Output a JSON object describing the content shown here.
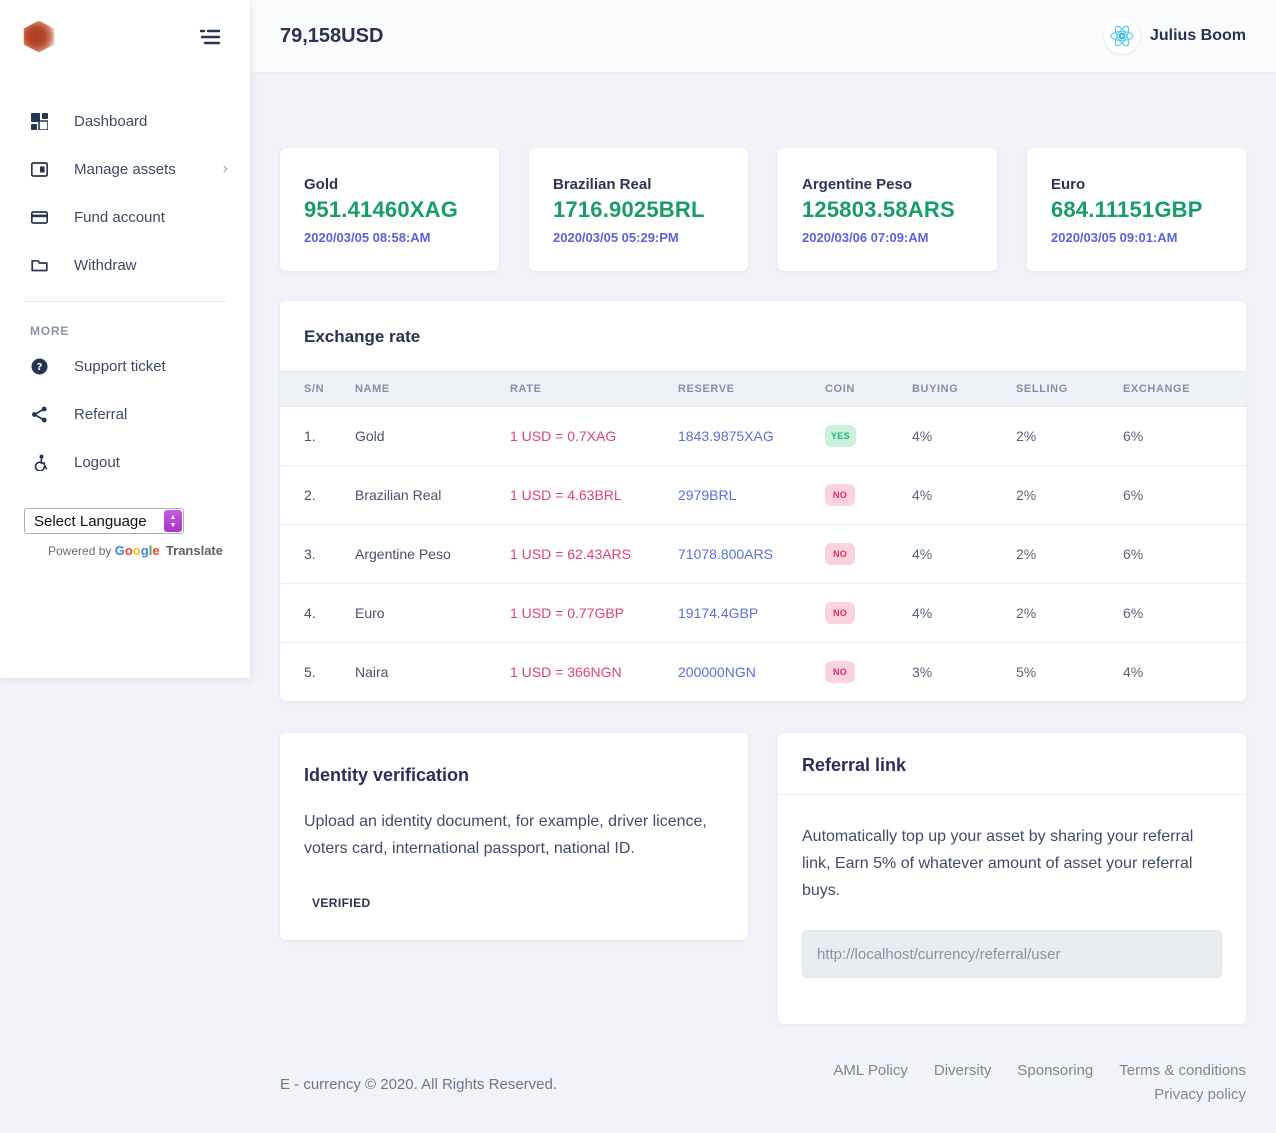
{
  "topbar": {
    "balance": "79,158USD",
    "user_name": "Julius Boom"
  },
  "sidebar": {
    "menu": [
      {
        "label": "Dashboard",
        "icon": "grid-icon"
      },
      {
        "label": "Manage assets",
        "icon": "vault-icon",
        "chevron": "›"
      },
      {
        "label": "Fund account",
        "icon": "credit-card-icon"
      },
      {
        "label": "Withdraw",
        "icon": "folder-icon"
      }
    ],
    "more_label": "MORE",
    "more_menu": [
      {
        "label": "Support ticket",
        "icon": "question-circle-icon"
      },
      {
        "label": "Referral",
        "icon": "share-icon"
      },
      {
        "label": "Logout",
        "icon": "accessibility-icon"
      }
    ],
    "language": {
      "select_label": "Select Language",
      "powered_by": "Powered by",
      "google": "Google",
      "google_letter_colors": [
        "#4285F4",
        "#EA4335",
        "#FBBC05",
        "#4285F4",
        "#34A853",
        "#EA4335"
      ],
      "translate": "Translate"
    }
  },
  "stat_cards": [
    {
      "title": "Gold",
      "value": "951.41460XAG",
      "date": "2020/03/05 08:58:AM"
    },
    {
      "title": "Brazilian Real",
      "value": "1716.9025BRL",
      "date": "2020/03/05 05:29:PM"
    },
    {
      "title": "Argentine Peso",
      "value": "125803.58ARS",
      "date": "2020/03/06 07:09:AM"
    },
    {
      "title": "Euro",
      "value": "684.11151GBP",
      "date": "2020/03/05 09:01:AM"
    }
  ],
  "exchange": {
    "title": "Exchange rate",
    "columns": [
      "S/N",
      "NAME",
      "RATE",
      "RESERVE",
      "COIN",
      "BUYING",
      "SELLING",
      "EXCHANGE"
    ],
    "rows": [
      {
        "sn": "1.",
        "name": "Gold",
        "rate": "1 USD = 0.7XAG",
        "reserve": "1843.9875XAG",
        "coin": "YES",
        "buying": "4%",
        "selling": "2%",
        "exchange": "6%"
      },
      {
        "sn": "2.",
        "name": "Brazilian Real",
        "rate": "1 USD = 4.63BRL",
        "reserve": "2979BRL",
        "coin": "NO",
        "buying": "4%",
        "selling": "2%",
        "exchange": "6%"
      },
      {
        "sn": "3.",
        "name": "Argentine Peso",
        "rate": "1 USD = 62.43ARS",
        "reserve": "71078.800ARS",
        "coin": "NO",
        "buying": "4%",
        "selling": "2%",
        "exchange": "6%"
      },
      {
        "sn": "4.",
        "name": "Euro",
        "rate": "1 USD = 0.77GBP",
        "reserve": "19174.4GBP",
        "coin": "NO",
        "buying": "4%",
        "selling": "2%",
        "exchange": "6%"
      },
      {
        "sn": "5.",
        "name": "Naira",
        "rate": "1 USD = 366NGN",
        "reserve": "200000NGN",
        "coin": "NO",
        "buying": "3%",
        "selling": "5%",
        "exchange": "4%"
      }
    ]
  },
  "identity": {
    "title": "Identity verification",
    "body": "Upload an identity document, for example, driver licence, voters card, international passport, national ID.",
    "button_label": "VERIFIED"
  },
  "referral": {
    "title": "Referral link",
    "body": "Automatically top up your asset by sharing your referral link, Earn 5% of whatever amount of asset your referral buys.",
    "link": "http://localhost/currency/referral/user"
  },
  "footer": {
    "copyright": "E - currency © 2020. All Rights Reserved.",
    "links_row1": [
      "AML Policy",
      "Diversity",
      "Sponsoring",
      "Terms & conditions"
    ],
    "links_row2": [
      "Privacy policy"
    ]
  },
  "colors": {
    "value_green": "#169e66",
    "date_indigo": "#5a62d8",
    "rate_pink": "#e0446e",
    "reserve_indigo": "#5a6fd8",
    "navy_heading": "#27324f",
    "badge_yes_bg": "#c9f2dc",
    "badge_yes_text": "#1fae7e",
    "badge_no_bg": "#fad3de",
    "badge_no_text": "#e02c5e",
    "page_bg": "#f1f3f9",
    "react_cyan": "#54c8e8"
  }
}
